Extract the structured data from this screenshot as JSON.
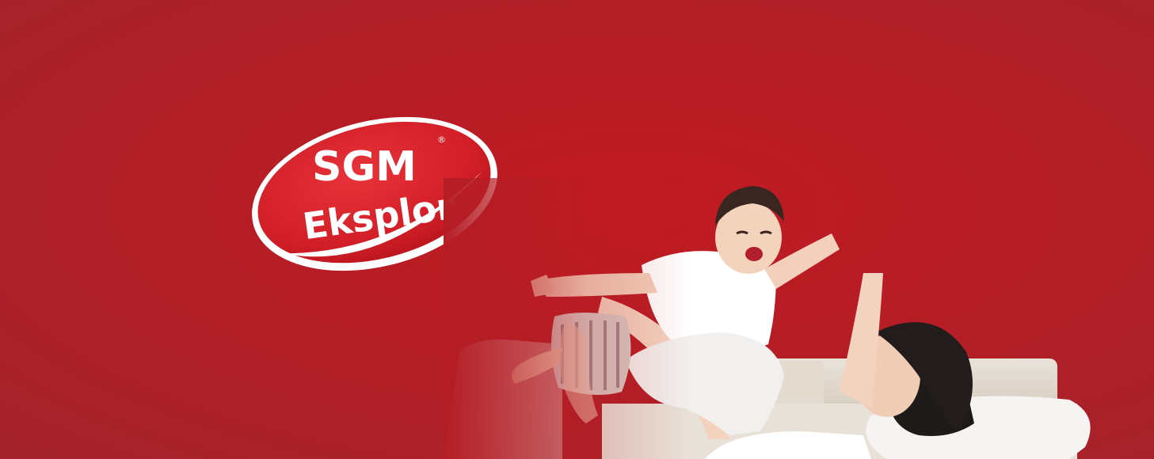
{
  "brand": {
    "name_line1": "SGM",
    "name_line2": "Eksplor",
    "registered_mark": "®",
    "colors": {
      "background": "#b51d25",
      "logo_red": "#d8222b",
      "logo_white": "#ffffff"
    }
  },
  "photo": {
    "description_icon": "mother-and-child-photo"
  }
}
